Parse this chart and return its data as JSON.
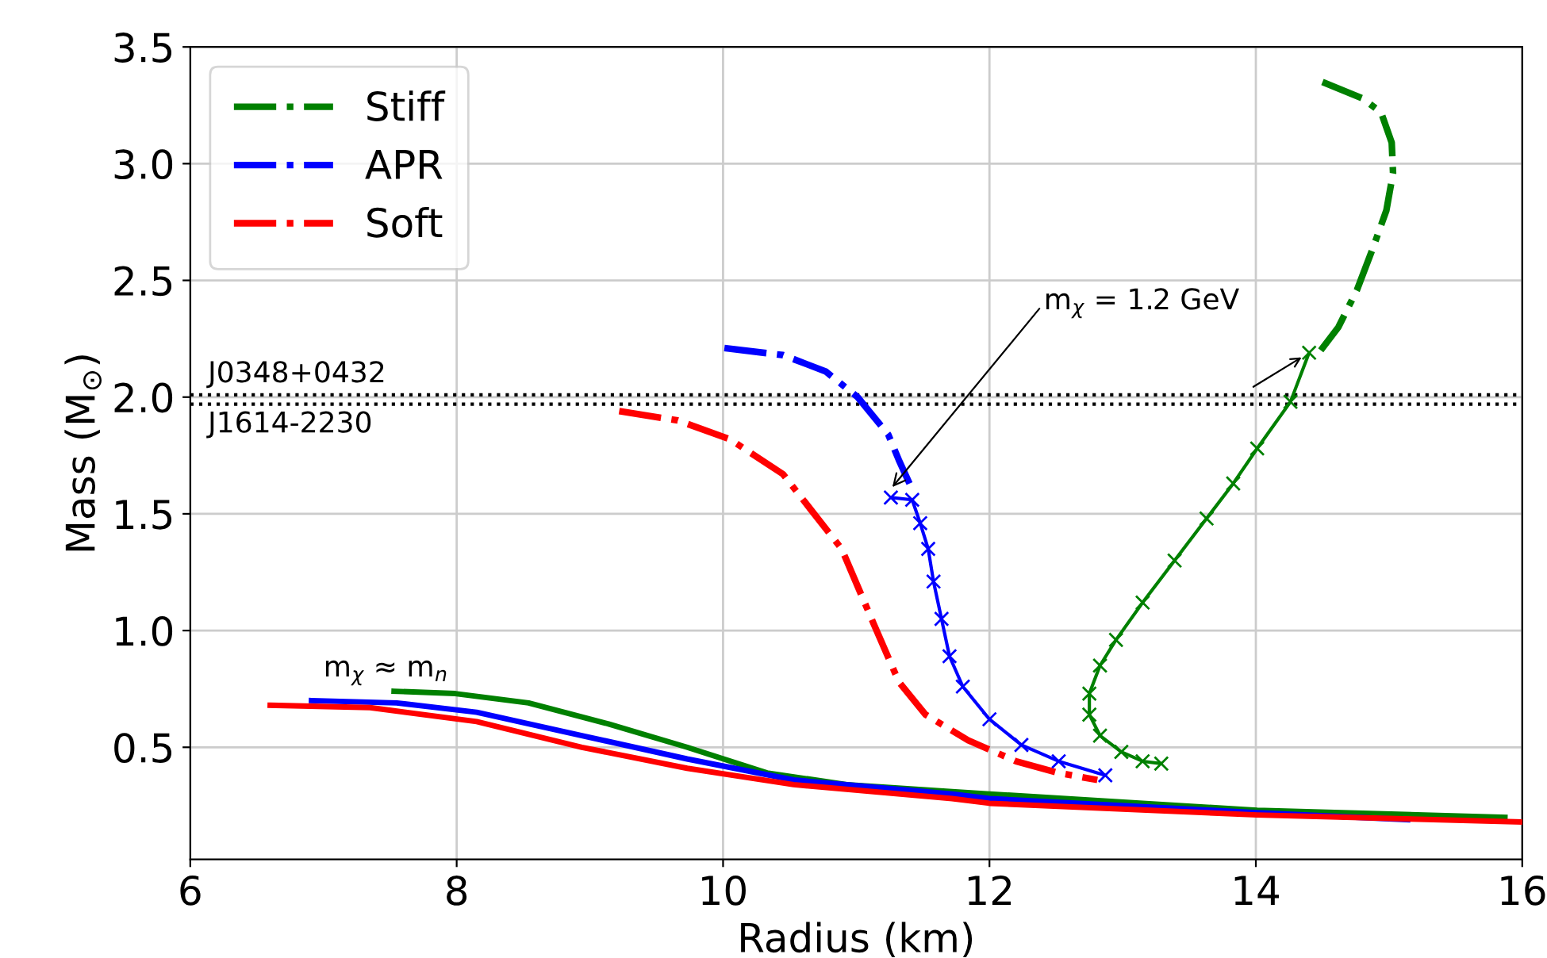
{
  "chart_data": {
    "type": "line",
    "xlabel": "Radius (km)",
    "ylabel": "Mass (M$_{⊙}$)",
    "xlim": [
      6,
      16
    ],
    "ylim": [
      0.02,
      3.5
    ],
    "xticks": [
      6,
      8,
      10,
      12,
      14,
      16
    ],
    "yticks": [
      0.5,
      {
        "value": 1,
        "label": "1.0"
      },
      1.5,
      {
        "value": 2,
        "label": "2.0"
      },
      2.5,
      {
        "value": 3,
        "label": "3.0"
      },
      3.5
    ],
    "grid": true,
    "legend": "top left",
    "series": [
      {
        "name": "Stiff",
        "color": "#008000",
        "line_style": "dashdot",
        "x": [
          14.5,
          14.8,
          14.94,
          15.02,
          15.03,
          14.98,
          14.88,
          14.76,
          14.62,
          14.46
        ],
        "values": [
          3.35,
          3.28,
          3.22,
          3.09,
          2.96,
          2.8,
          2.64,
          2.46,
          2.3,
          2.18
        ]
      },
      {
        "name": "APR",
        "color": "#0000ff",
        "line_style": "dashdot",
        "x": [
          10.01,
          10.45,
          10.77,
          11.01,
          11.24,
          11.32,
          11.4
        ],
        "values": [
          2.21,
          2.18,
          2.11,
          2.0,
          1.84,
          1.73,
          1.63
        ]
      },
      {
        "name": "Soft",
        "color": "#ff0000",
        "line_style": "dashdot",
        "x": [
          9.22,
          9.66,
          10.05,
          10.45,
          10.89,
          11.13,
          11.32,
          11.52,
          11.84,
          12.2,
          12.52,
          12.81
        ],
        "values": [
          1.94,
          1.9,
          1.82,
          1.67,
          1.35,
          1.03,
          0.78,
          0.64,
          0.53,
          0.44,
          0.39,
          0.36
        ]
      },
      {
        "color": "#008000",
        "line_style": "solid",
        "marker": "cross",
        "x": [
          14.4,
          14.26,
          14.01,
          13.83,
          13.63,
          13.39,
          13.15,
          12.95,
          12.83,
          12.75,
          12.75,
          12.83,
          12.99,
          13.15,
          13.29
        ],
        "values": [
          2.19,
          1.98,
          1.78,
          1.63,
          1.48,
          1.3,
          1.12,
          0.96,
          0.85,
          0.73,
          0.64,
          0.55,
          0.48,
          0.44,
          0.43
        ]
      },
      {
        "color": "#0000ff",
        "line_style": "solid",
        "marker": "cross",
        "x": [
          11.26,
          11.42,
          11.48,
          11.54,
          11.58,
          11.64,
          11.7,
          11.8,
          12.0,
          12.24,
          12.52,
          12.87
        ],
        "values": [
          1.57,
          1.56,
          1.46,
          1.35,
          1.21,
          1.05,
          0.89,
          0.76,
          0.62,
          0.51,
          0.44,
          0.38
        ]
      },
      {
        "color": "#008000",
        "line_style": "solid",
        "x": [
          7.53,
          7.99,
          8.54,
          9.14,
          9.73,
          10.33,
          10.93,
          11.72,
          12.0,
          14.01,
          15.87
        ],
        "values": [
          0.74,
          0.73,
          0.69,
          0.6,
          0.5,
          0.39,
          0.34,
          0.31,
          0.3,
          0.23,
          0.2
        ]
      },
      {
        "color": "#0000ff",
        "line_style": "solid",
        "x": [
          6.91,
          7.55,
          8.15,
          8.94,
          9.73,
          10.53,
          11.72,
          12.0,
          14.01,
          15.14
        ],
        "values": [
          0.7,
          0.69,
          0.65,
          0.55,
          0.45,
          0.36,
          0.3,
          0.28,
          0.22,
          0.19
        ]
      },
      {
        "color": "#ff0000",
        "line_style": "solid",
        "x": [
          6.6,
          7.35,
          8.15,
          8.94,
          9.73,
          10.53,
          11.72,
          12.0,
          14.01,
          16.0
        ],
        "values": [
          0.68,
          0.67,
          0.61,
          0.5,
          0.41,
          0.34,
          0.28,
          0.26,
          0.21,
          0.18
        ]
      }
    ],
    "ref_lines": [
      {
        "axis": "y",
        "value": 2.01,
        "label": "J0348+0432",
        "color": "#000000",
        "line_style": "dotted"
      },
      {
        "axis": "y",
        "value": 1.97,
        "label": "J1614-2230",
        "color": "#000000",
        "line_style": "dotted"
      }
    ],
    "annotations": [
      {
        "text": "m$_{χ}$ = 1.2 GeV",
        "x": 11.25,
        "y": 1.6
      },
      "m$_{χ}$ ≈ m$_{n}$"
    ]
  }
}
